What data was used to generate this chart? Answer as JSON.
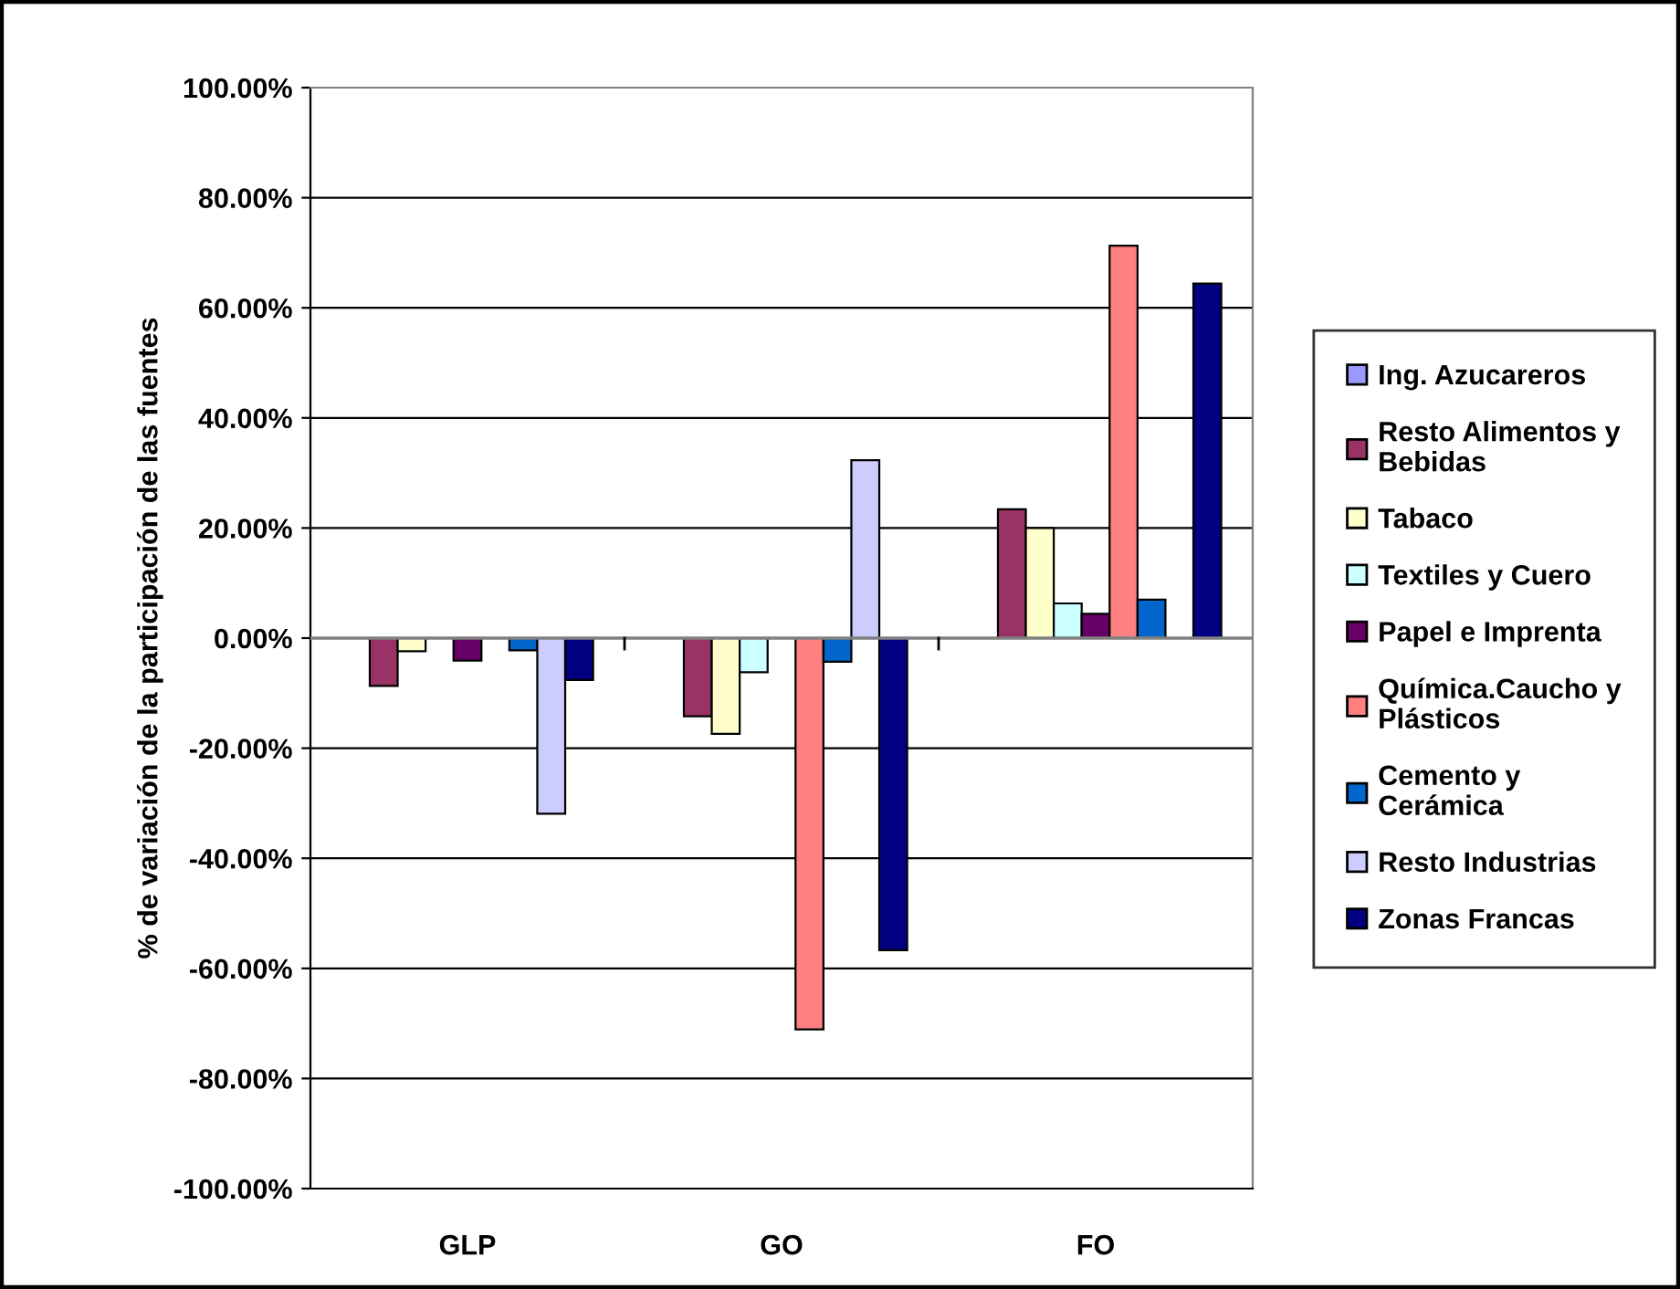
{
  "chart_data": {
    "type": "bar",
    "ylabel": "% de variación de la participación de las fuentes",
    "categories": [
      "GLP",
      "GO",
      "FO"
    ],
    "series": [
      {
        "name": "Ing. Azucareros",
        "color": "#9999ff",
        "values": [
          null,
          null,
          null
        ]
      },
      {
        "name": "Resto Alimentos y Bebidas",
        "color": "#993366",
        "values": [
          -8.7,
          -14.2,
          23.4
        ]
      },
      {
        "name": "Tabaco",
        "color": "#ffffcc",
        "values": [
          -2.4,
          -17.4,
          20
        ]
      },
      {
        "name": "Textiles y Cuero",
        "color": "#ccffff",
        "values": [
          null,
          -6.2,
          6.3
        ]
      },
      {
        "name": "Papel e Imprenta",
        "color": "#660066",
        "values": [
          -4.1,
          null,
          4.4
        ]
      },
      {
        "name": "Química.Caucho y Plásticos",
        "color": "#ff8080",
        "values": [
          null,
          -71.1,
          71.3
        ]
      },
      {
        "name": "Cemento y Cerámica",
        "color": "#0066cc",
        "values": [
          -2.2,
          -4.3,
          7
        ]
      },
      {
        "name": "Resto Industrias",
        "color": "#ccccff",
        "values": [
          -31.9,
          32.3,
          null
        ]
      },
      {
        "name": "Zonas Francas",
        "color": "#000080",
        "values": [
          -7.6,
          -56.7,
          64.4
        ]
      }
    ],
    "ylim": [
      -100,
      100
    ],
    "yticks": [
      {
        "value": -100,
        "label": "-100.00%"
      },
      {
        "value": -80,
        "label": "-80.00%"
      },
      {
        "value": -60,
        "label": "-60.00%"
      },
      {
        "value": -40,
        "label": "-40.00%"
      },
      {
        "value": -20,
        "label": "-20.00%"
      },
      {
        "value": 0,
        "label": "0.00%"
      },
      {
        "value": 20,
        "label": "20.00%"
      },
      {
        "value": 40,
        "label": "40.00%"
      },
      {
        "value": 60,
        "label": "60.00%"
      },
      {
        "value": 80,
        "label": "80.00%"
      },
      {
        "value": 100,
        "label": "100.00%"
      }
    ],
    "grid": "y",
    "legend": "right"
  }
}
